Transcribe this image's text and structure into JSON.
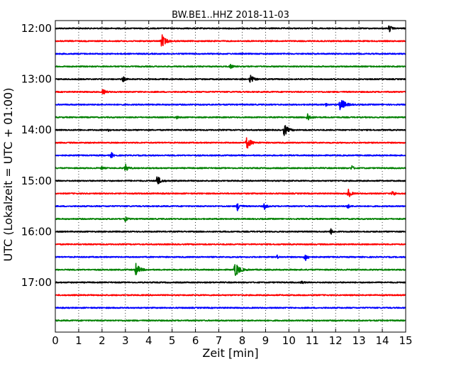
{
  "chart_data": {
    "type": "line",
    "subtype": "helicorder",
    "title": "BW.BE1..HHZ 2018-11-03",
    "xlabel": "Zeit  [min]",
    "ylabel": "UTC (Lokalzeit = UTC + 01:00)",
    "xlim": [
      0,
      15
    ],
    "x_ticks": [
      "0",
      "1",
      "2",
      "3",
      "4",
      "5",
      "6",
      "7",
      "8",
      "9",
      "10",
      "11",
      "12",
      "13",
      "14",
      "15"
    ],
    "y_tick_labels": [
      "12:00",
      "13:00",
      "14:00",
      "15:00",
      "16:00",
      "17:00"
    ],
    "vertical_grid": "dotted",
    "trace_color_cycle": [
      "#000000",
      "#ff0000",
      "#0000ff",
      "#008000"
    ],
    "traces": [
      {
        "start": "12:00",
        "events": [
          [
            14.3,
            0.45
          ]
        ]
      },
      {
        "start": "12:15",
        "events": [
          [
            4.55,
            0.9
          ]
        ]
      },
      {
        "start": "12:30",
        "events": []
      },
      {
        "start": "12:45",
        "events": [
          [
            7.5,
            0.3
          ]
        ]
      },
      {
        "start": "13:00",
        "events": [
          [
            2.9,
            0.35
          ],
          [
            8.35,
            0.6
          ]
        ]
      },
      {
        "start": "13:15",
        "events": [
          [
            2.05,
            0.4
          ]
        ]
      },
      {
        "start": "13:30",
        "events": [
          [
            12.2,
            1.0
          ],
          [
            11.6,
            0.2
          ]
        ]
      },
      {
        "start": "13:45",
        "events": [
          [
            10.8,
            0.55
          ],
          [
            5.2,
            0.2
          ]
        ]
      },
      {
        "start": "14:00",
        "events": [
          [
            9.8,
            0.8
          ],
          [
            2.3,
            0.2
          ]
        ]
      },
      {
        "start": "14:15",
        "events": [
          [
            8.2,
            0.85
          ]
        ]
      },
      {
        "start": "14:30",
        "events": [
          [
            2.4,
            0.35
          ]
        ]
      },
      {
        "start": "14:45",
        "events": [
          [
            3.0,
            0.5
          ],
          [
            12.7,
            0.3
          ],
          [
            2.0,
            0.2
          ]
        ]
      },
      {
        "start": "15:00",
        "events": [
          [
            4.35,
            0.75
          ]
        ]
      },
      {
        "start": "15:15",
        "events": [
          [
            12.55,
            0.55
          ],
          [
            14.45,
            0.4
          ]
        ]
      },
      {
        "start": "15:30",
        "events": [
          [
            7.8,
            0.55
          ],
          [
            8.95,
            0.4
          ],
          [
            12.5,
            0.35
          ]
        ]
      },
      {
        "start": "15:45",
        "events": [
          [
            3.0,
            0.3
          ]
        ]
      },
      {
        "start": "16:00",
        "events": [
          [
            11.8,
            0.35
          ]
        ]
      },
      {
        "start": "16:15",
        "events": []
      },
      {
        "start": "16:30",
        "events": [
          [
            10.7,
            0.55
          ],
          [
            9.5,
            0.2
          ]
        ]
      },
      {
        "start": "16:45",
        "events": [
          [
            3.45,
            0.85
          ],
          [
            7.7,
            1.0
          ]
        ]
      },
      {
        "start": "17:00",
        "events": [
          [
            10.55,
            0.25
          ]
        ]
      },
      {
        "start": "17:15",
        "events": []
      },
      {
        "start": "17:30",
        "events": []
      },
      {
        "start": "17:45",
        "events": []
      }
    ]
  }
}
